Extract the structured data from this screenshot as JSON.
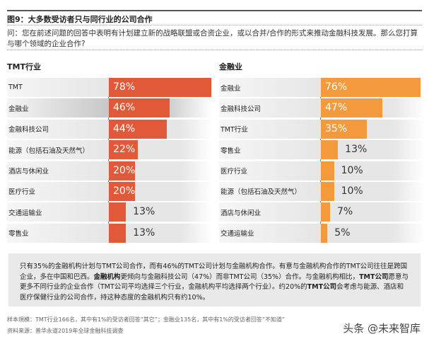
{
  "title": "图9：大多数受访者只与同行业的公司合作",
  "question": "问：您在前述问题的回答中表明有计划建立新的战略联盟或合资企业，或以合并/合作的形式来推动金融科技发展。那么您打算与哪个领域的企业合作?",
  "chart_data": [
    {
      "type": "bar",
      "orientation": "horizontal",
      "title": "TMT行业",
      "color": "#e05a3a",
      "unit": "%",
      "categories": [
        "TMT",
        "金融业",
        "金融科技公司",
        "能源（包括石油及天然气）",
        "酒店与休闲业",
        "医疗行业",
        "交通运输业",
        "零售业"
      ],
      "values": [
        78,
        46,
        44,
        22,
        20,
        20,
        13,
        13
      ],
      "labels": [
        "78%",
        "46%",
        "44%",
        "22%",
        "20%",
        "20%",
        "13%",
        "13%"
      ]
    },
    {
      "type": "bar",
      "orientation": "horizontal",
      "title": "金融业",
      "color": "#f29a3c",
      "unit": "%",
      "categories": [
        "金融业",
        "金融科技公司",
        "TMT行业",
        "零售业",
        "医疗行业",
        "能源（包括石油及天然气）",
        "酒店与休闲业",
        "交通运输业"
      ],
      "values": [
        76,
        47,
        35,
        13,
        10,
        10,
        7,
        5
      ],
      "labels": [
        "76%",
        "47%",
        "35%",
        "13%",
        "10%",
        "10%",
        "7%",
        "5%"
      ]
    }
  ],
  "summary": [
    {
      "t": "只有35%的金融机构计划与TMT公司合作，而有46%的TMT公司计划与金融机构合作。有意与金融机构合作的TMT公司往往是跨国企业，多在中国和巴西。",
      "b": false
    },
    {
      "t": "金融机构",
      "b": true
    },
    {
      "t": "更倾向与金融科技公司（47%）而非TMT公司（35%）合作。与金融机构相比，",
      "b": false
    },
    {
      "t": "TMT公司",
      "b": true
    },
    {
      "t": "愿意与更多不同行业的企业合作（TMT公司平均选择三个行业，金融机构平均选择两个行业）。约20%的",
      "b": false
    },
    {
      "t": "TMT公司",
      "b": true
    },
    {
      "t": "会考虑与能源、酒店和医疗保健行业的公司合作，持这种态度的金融机构只有约10%。",
      "b": false
    }
  ],
  "footnote_sample": "样本規模：TMT行业166名，其中有1%的受访者回答“其它”；金融业135名，其中有1%的受访者回答”不知道”",
  "footnote_source": "资料来源：普华永道2019年全球金融科技调查",
  "watermark": "头条 @未来智库"
}
